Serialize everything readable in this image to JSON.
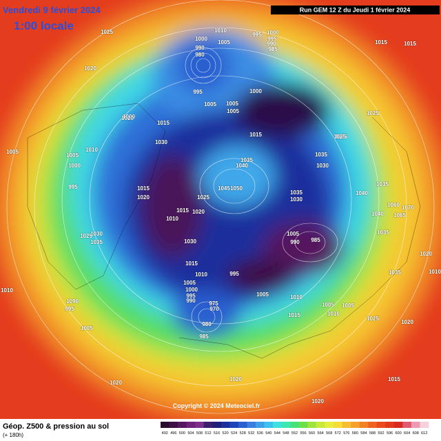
{
  "header": {
    "date": "Vendredi 9 février 2024",
    "time": "1:00 locale",
    "run": "Run GEM 12 Z du Jeudi 1 février 2024"
  },
  "footer": {
    "title": "Géop. Z500 & pression au sol",
    "subtitle": "(+ 180h)",
    "copyright": "Copyright © 2024 Meteociel.fr"
  },
  "colorbar": {
    "values": [
      492,
      496,
      500,
      504,
      508,
      512,
      516,
      520,
      524,
      528,
      532,
      536,
      540,
      544,
      548,
      552,
      556,
      560,
      564,
      568,
      572,
      576,
      580,
      584,
      588,
      592,
      596,
      600,
      604,
      608,
      612
    ],
    "colors": [
      "#2a0a2e",
      "#3d0f45",
      "#55175f",
      "#6e2279",
      "#7a2f8c",
      "#3b1e6e",
      "#1f1f7a",
      "#1b2f9c",
      "#1d44b8",
      "#2a5fd0",
      "#3b7de0",
      "#3fa0e8",
      "#3cc2ee",
      "#3ee0e0",
      "#3fe8b0",
      "#45e27a",
      "#6be04a",
      "#9ee43a",
      "#c8ea38",
      "#e8ec3a",
      "#f6dc36",
      "#f7bf30",
      "#f6a12a",
      "#f38224",
      "#ef6320",
      "#ea4a1e",
      "#e2381e",
      "#d82a22",
      "#e05a70",
      "#ee9ab0",
      "#f6d0dc"
    ]
  },
  "pressure_labels": [
    "1025",
    "1020",
    "1010",
    "1000",
    "1005",
    "995",
    "1000",
    "995",
    "990",
    "985",
    "990",
    "980",
    "995",
    "1000",
    "1005",
    "1005",
    "1005",
    "1000",
    "1015",
    "1015",
    "1025",
    "1025",
    "1005",
    "1010",
    "1005",
    "1000",
    "995",
    "1030",
    "1035",
    "1040",
    "1035",
    "1030",
    "1035",
    "1040",
    "1015",
    "1020",
    "1045",
    "1050",
    "1035",
    "1030",
    "1025",
    "1015",
    "1020",
    "1010",
    "1060",
    "1070",
    "1065",
    "1040",
    "1030",
    "1035",
    "1025",
    "1035",
    "1030",
    "1005",
    "990",
    "985",
    "1020",
    "1015",
    "995",
    "1010",
    "1035",
    "1005",
    "1000",
    "995",
    "990",
    "975",
    "970",
    "1005",
    "1010",
    "1090",
    "995",
    "1005",
    "1005",
    "1010",
    "1015",
    "1025",
    "1020",
    "1005",
    "980",
    "985",
    "1020",
    "1015",
    "1020",
    "1020",
    "1025",
    "1020",
    "1015",
    "1015",
    "1010",
    "1010"
  ]
}
